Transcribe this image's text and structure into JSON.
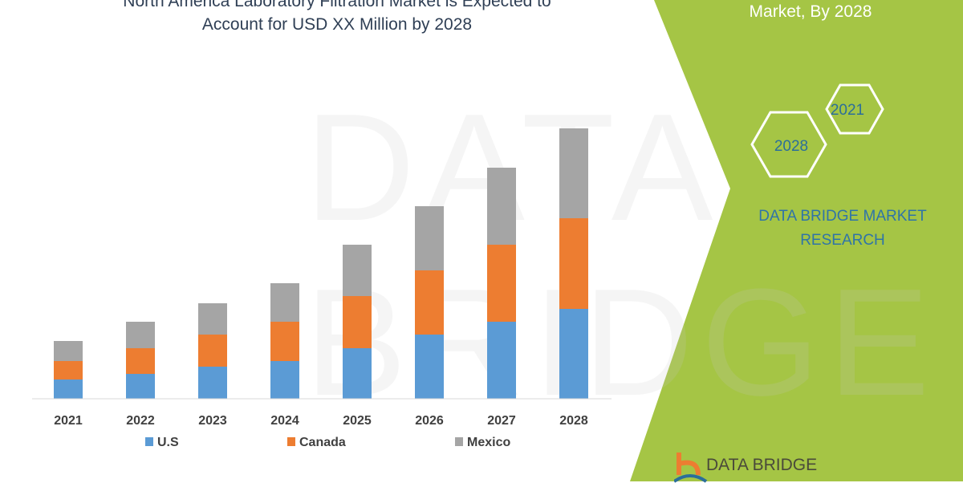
{
  "header": {
    "title_line1": "North America Laboratory Filtration Market is Expected to",
    "title_line2": "Account for USD XX Million by 2028",
    "right_title": "Market, By 2028"
  },
  "hexagons": {
    "year_a": "2021",
    "year_b": "2028"
  },
  "brand": {
    "line1": "DATA BRIDGE MARKET",
    "line2": "RESEARCH",
    "logo_text": "DATA BRIDGE",
    "watermark": "DATA BRIDGE"
  },
  "colors": {
    "us": "#5b9bd5",
    "canada": "#ed7d31",
    "mexico": "#a5a5a5",
    "panel": "#a5c545"
  },
  "chart_data": {
    "type": "bar",
    "stacked": true,
    "categories": [
      "2021",
      "2022",
      "2023",
      "2024",
      "2025",
      "2026",
      "2027",
      "2028"
    ],
    "series": [
      {
        "name": "U.S",
        "values": [
          24,
          31,
          40,
          47,
          63,
          80,
          96,
          112
        ]
      },
      {
        "name": "Canada",
        "values": [
          23,
          32,
          40,
          49,
          65,
          80,
          96,
          113
        ]
      },
      {
        "name": "Mexico",
        "values": [
          25,
          33,
          39,
          48,
          64,
          80,
          96,
          112
        ]
      }
    ],
    "ylim": [
      0,
      340
    ],
    "grid": false,
    "legend": "bottom"
  }
}
